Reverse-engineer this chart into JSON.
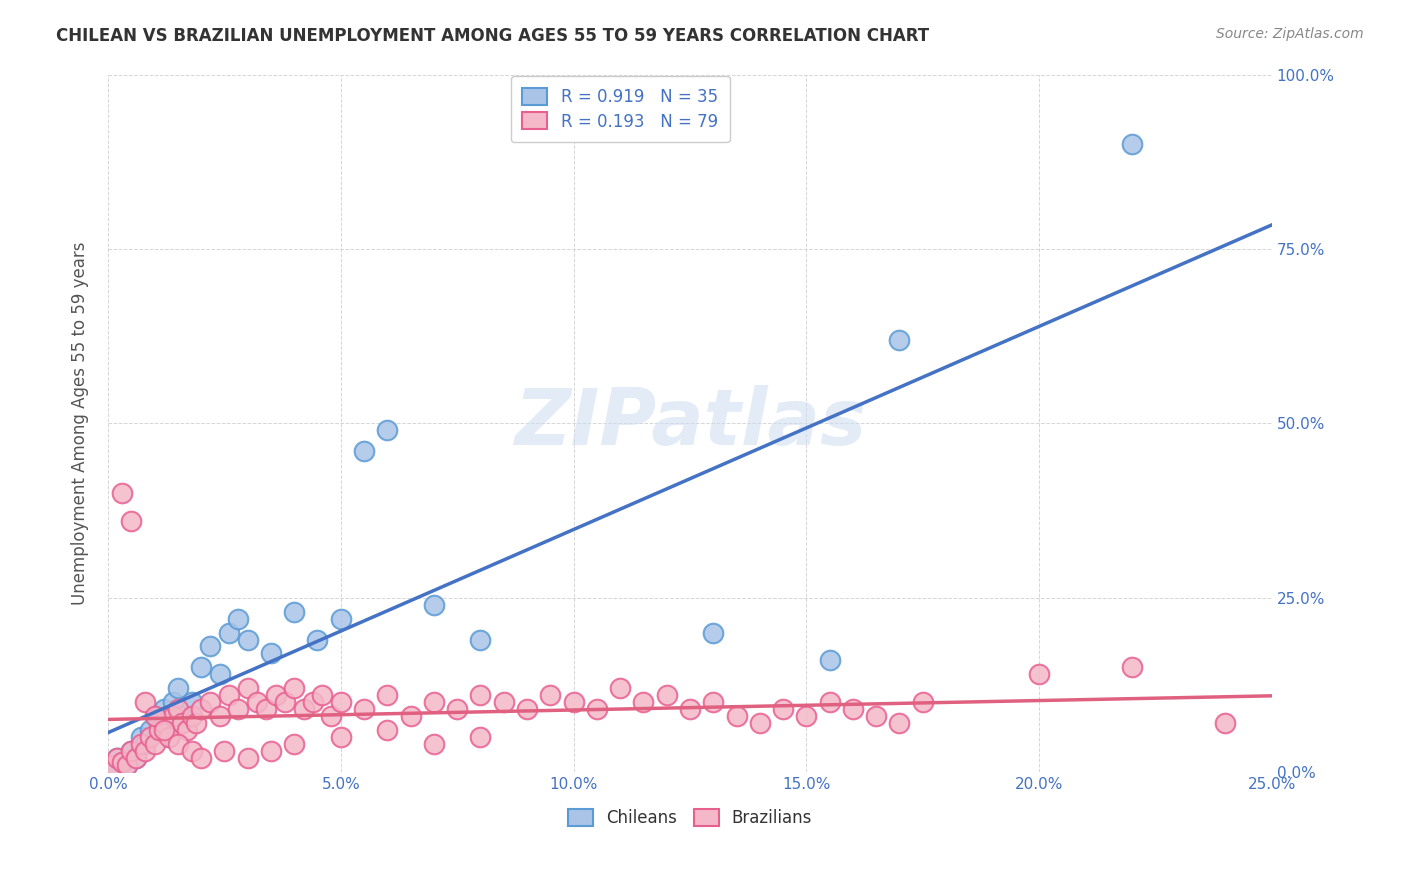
{
  "title": "CHILEAN VS BRAZILIAN UNEMPLOYMENT AMONG AGES 55 TO 59 YEARS CORRELATION CHART",
  "source": "Source: ZipAtlas.com",
  "ylabel": "Unemployment Among Ages 55 to 59 years",
  "xlim": [
    0.0,
    0.25
  ],
  "ylim": [
    0.0,
    1.0
  ],
  "xticks": [
    0.0,
    0.05,
    0.1,
    0.15,
    0.2,
    0.25
  ],
  "yticks": [
    0.0,
    0.25,
    0.5,
    0.75,
    1.0
  ],
  "chilean_color": "#aac4e8",
  "chilean_edge": "#5b9bd5",
  "brazilian_color": "#f4b8c8",
  "brazilian_edge": "#e86090",
  "line_chilean": "#4472c4",
  "line_brazilian": "#e06080",
  "watermark": "ZIPatlas",
  "chilean_x": [
    0.001,
    0.002,
    0.003,
    0.004,
    0.005,
    0.006,
    0.007,
    0.008,
    0.009,
    0.01,
    0.011,
    0.012,
    0.013,
    0.014,
    0.015,
    0.016,
    0.018,
    0.02,
    0.022,
    0.024,
    0.026,
    0.028,
    0.03,
    0.035,
    0.04,
    0.045,
    0.05,
    0.055,
    0.06,
    0.07,
    0.08,
    0.13,
    0.155,
    0.17,
    0.22
  ],
  "chilean_y": [
    0.01,
    0.02,
    0.015,
    0.01,
    0.03,
    0.02,
    0.05,
    0.04,
    0.06,
    0.08,
    0.07,
    0.09,
    0.05,
    0.1,
    0.12,
    0.08,
    0.1,
    0.15,
    0.18,
    0.14,
    0.2,
    0.22,
    0.19,
    0.17,
    0.23,
    0.19,
    0.22,
    0.46,
    0.49,
    0.24,
    0.19,
    0.2,
    0.16,
    0.62,
    0.9
  ],
  "brazilian_x": [
    0.001,
    0.002,
    0.003,
    0.004,
    0.005,
    0.006,
    0.007,
    0.008,
    0.009,
    0.01,
    0.011,
    0.012,
    0.013,
    0.014,
    0.015,
    0.016,
    0.017,
    0.018,
    0.019,
    0.02,
    0.022,
    0.024,
    0.026,
    0.028,
    0.03,
    0.032,
    0.034,
    0.036,
    0.038,
    0.04,
    0.042,
    0.044,
    0.046,
    0.048,
    0.05,
    0.055,
    0.06,
    0.065,
    0.07,
    0.075,
    0.08,
    0.085,
    0.09,
    0.095,
    0.1,
    0.105,
    0.11,
    0.115,
    0.12,
    0.125,
    0.13,
    0.135,
    0.14,
    0.145,
    0.15,
    0.155,
    0.16,
    0.165,
    0.17,
    0.175,
    0.003,
    0.005,
    0.008,
    0.01,
    0.012,
    0.015,
    0.018,
    0.02,
    0.025,
    0.03,
    0.035,
    0.04,
    0.05,
    0.06,
    0.07,
    0.08,
    0.2,
    0.22,
    0.24
  ],
  "brazilian_y": [
    0.01,
    0.02,
    0.015,
    0.01,
    0.03,
    0.02,
    0.04,
    0.03,
    0.05,
    0.04,
    0.06,
    0.07,
    0.05,
    0.08,
    0.09,
    0.07,
    0.06,
    0.08,
    0.07,
    0.09,
    0.1,
    0.08,
    0.11,
    0.09,
    0.12,
    0.1,
    0.09,
    0.11,
    0.1,
    0.12,
    0.09,
    0.1,
    0.11,
    0.08,
    0.1,
    0.09,
    0.11,
    0.08,
    0.1,
    0.09,
    0.11,
    0.1,
    0.09,
    0.11,
    0.1,
    0.09,
    0.12,
    0.1,
    0.11,
    0.09,
    0.1,
    0.08,
    0.07,
    0.09,
    0.08,
    0.1,
    0.09,
    0.08,
    0.07,
    0.1,
    0.4,
    0.36,
    0.1,
    0.08,
    0.06,
    0.04,
    0.03,
    0.02,
    0.03,
    0.02,
    0.03,
    0.04,
    0.05,
    0.06,
    0.04,
    0.05,
    0.14,
    0.15,
    0.07
  ],
  "background_color": "#ffffff",
  "grid_color": "#cccccc",
  "legend_text_chilean": "R = 0.919   N = 35",
  "legend_text_brazilian": "R = 0.193   N = 79",
  "legend_label_chilean": "Chileans",
  "legend_label_brazilian": "Brazilians"
}
